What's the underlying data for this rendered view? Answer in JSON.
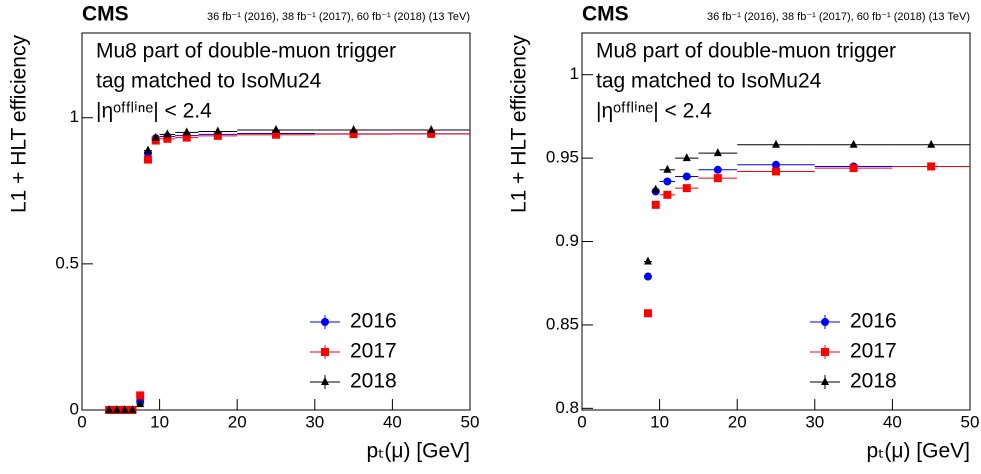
{
  "chart_data": [
    {
      "type": "scatter",
      "label": "CMS",
      "lumi_text": "36 fb⁻¹ (2016), 38 fb⁻¹ (2017), 60 fb⁻¹ (2018) (13 TeV)",
      "annotations": [
        "Mu8 part of double-muon trigger",
        "tag matched to IsoMu24",
        "|ηᵒᶠᶠˡⁱⁿᵉ| < 2.4"
      ],
      "x_label": "pₜ(μ) [GeV]",
      "y_label": "L1 + HLT efficiency",
      "x": [
        3.5,
        4.5,
        5.5,
        6.5,
        7.5,
        8.5,
        9.5,
        11,
        13.5,
        17.5,
        25,
        35,
        45
      ],
      "xerr": [
        0.5,
        0.5,
        0.5,
        0.5,
        0.5,
        0.5,
        0.5,
        1,
        1.5,
        2.5,
        5,
        5,
        5
      ],
      "series": [
        {
          "name": "2016",
          "color": "#0000ff",
          "marker": "circle",
          "values": [
            0,
            0,
            0,
            0,
            0.03,
            0.879,
            0.93,
            0.936,
            0.939,
            0.943,
            0.946,
            0.945,
            0.945
          ]
        },
        {
          "name": "2017",
          "color": "#ff0000",
          "marker": "square",
          "values": [
            0,
            0,
            0,
            0,
            0.05,
            0.857,
            0.922,
            0.928,
            0.932,
            0.938,
            0.942,
            0.944,
            0.945
          ]
        },
        {
          "name": "2018",
          "color": "#000000",
          "marker": "triangle",
          "values": [
            0,
            0,
            0,
            0,
            0.02,
            0.888,
            0.931,
            0.943,
            0.95,
            0.953,
            0.958,
            0.958,
            0.958
          ]
        }
      ],
      "xlim": [
        0,
        50
      ],
      "ylim": [
        0,
        1.29
      ],
      "xticks": [
        0,
        10,
        20,
        30,
        40,
        50
      ],
      "yticks": [
        0,
        0.5,
        1
      ],
      "legend": "lower right"
    },
    {
      "type": "scatter",
      "label": "CMS",
      "lumi_text": "36 fb⁻¹ (2016), 38 fb⁻¹ (2017), 60 fb⁻¹ (2018) (13 TeV)",
      "annotations": [
        "Mu8 part of double-muon trigger",
        "tag matched to IsoMu24",
        "|ηᵒᶠᶠˡⁱⁿᵉ| < 2.4"
      ],
      "x_label": "pₜ(μ) [GeV]",
      "y_label": "L1 + HLT efficiency",
      "x": [
        8.5,
        9.5,
        11,
        13.5,
        17.5,
        25,
        35,
        45
      ],
      "xerr": [
        0.5,
        0.5,
        1,
        1.5,
        2.5,
        5,
        5,
        5
      ],
      "series": [
        {
          "name": "2016",
          "color": "#0000ff",
          "marker": "circle",
          "values": [
            0.879,
            0.93,
            0.936,
            0.939,
            0.943,
            0.946,
            0.945,
            0.945
          ]
        },
        {
          "name": "2017",
          "color": "#ff0000",
          "marker": "square",
          "values": [
            0.857,
            0.922,
            0.928,
            0.932,
            0.938,
            0.942,
            0.944,
            0.945
          ]
        },
        {
          "name": "2018",
          "color": "#000000",
          "marker": "triangle",
          "values": [
            0.888,
            0.931,
            0.943,
            0.95,
            0.953,
            0.958,
            0.958,
            0.958
          ]
        }
      ],
      "xlim": [
        0,
        50
      ],
      "ylim": [
        0.799,
        1.025
      ],
      "xticks": [
        0,
        10,
        20,
        30,
        40,
        50
      ],
      "yticks": [
        0.8,
        0.85,
        0.9,
        0.95,
        1
      ],
      "legend": "lower right"
    }
  ]
}
